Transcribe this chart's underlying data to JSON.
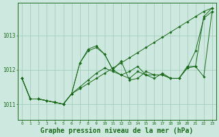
{
  "x": [
    0,
    1,
    2,
    3,
    4,
    5,
    6,
    7,
    8,
    9,
    10,
    11,
    12,
    13,
    14,
    15,
    16,
    17,
    18,
    19,
    20,
    21,
    22,
    23
  ],
  "series": [
    [
      1011.75,
      1011.15,
      1011.15,
      1011.1,
      1011.05,
      1011.0,
      1011.3,
      1011.45,
      1011.6,
      1011.75,
      1011.9,
      1012.05,
      1012.2,
      1012.35,
      1012.5,
      1012.65,
      1012.8,
      1012.95,
      1013.1,
      1013.25,
      1013.4,
      1013.55,
      1013.7,
      1013.8
    ],
    [
      1011.75,
      1011.15,
      1011.15,
      1011.1,
      1011.05,
      1011.0,
      1011.3,
      1011.5,
      1011.7,
      1011.9,
      1012.05,
      1011.95,
      1011.85,
      1011.95,
      1012.1,
      1011.85,
      1011.75,
      1011.9,
      1011.75,
      1011.75,
      1012.05,
      1012.1,
      1011.8,
      1013.7
    ],
    [
      1011.75,
      1011.15,
      1011.15,
      1011.1,
      1011.05,
      1011.0,
      1011.3,
      1012.2,
      1012.6,
      1012.7,
      1012.45,
      1012.0,
      1011.85,
      1011.75,
      1011.95,
      1011.85,
      1011.85,
      1011.85,
      1011.75,
      1011.75,
      1012.05,
      1012.55,
      1013.5,
      1013.7
    ],
    [
      1011.75,
      1011.15,
      1011.15,
      1011.1,
      1011.05,
      1011.0,
      1011.3,
      1012.2,
      1012.55,
      1012.65,
      1012.45,
      1012.0,
      1012.25,
      1011.7,
      1011.75,
      1011.95,
      1011.85,
      1011.85,
      1011.75,
      1011.75,
      1012.1,
      1012.1,
      1013.55,
      1013.8
    ]
  ],
  "line_color": "#1a6b1a",
  "marker_color": "#1a6b1a",
  "bg_color": "#cde8de",
  "grid_color": "#a0c8b8",
  "axis_color": "#1a6b1a",
  "title": "Graphe pression niveau de la mer (hPa)",
  "title_fontsize": 7,
  "yticks": [
    1011,
    1012,
    1013
  ],
  "ylim": [
    1010.55,
    1013.95
  ],
  "xlim": [
    -0.5,
    23.5
  ],
  "figsize": [
    3.2,
    2.0
  ],
  "dpi": 100
}
